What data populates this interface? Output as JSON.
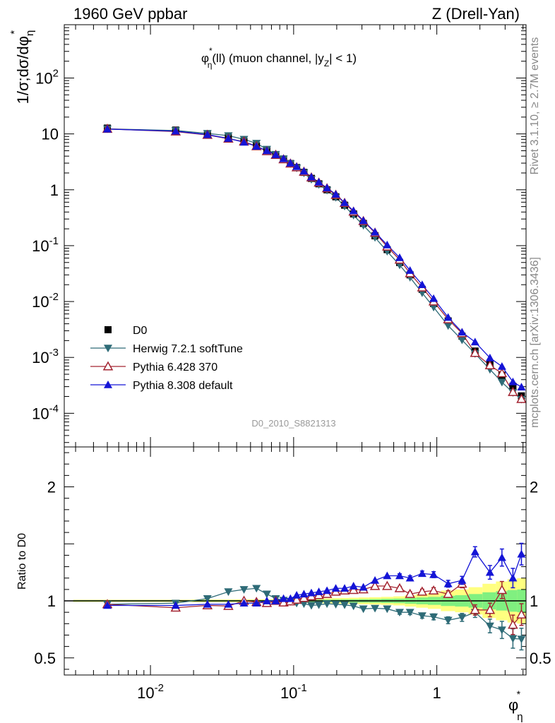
{
  "header": {
    "left": "1960 GeV ppbar",
    "right": "Z (Drell-Yan)"
  },
  "side_labels": {
    "rivet": "Rivet 3.1.10, ≥ 2.7M events",
    "mcplots": "mcplots.cern.ch [arXiv:1306.3436]"
  },
  "plot_title": {
    "phi": "φ",
    "star": "*",
    "eta": "η",
    "main": "(ll) (muon channel, |y",
    "z": "Z",
    "tail": "| < 1)"
  },
  "y_axis_top": {
    "prefix": "1/σ;dσ/dφ",
    "sub": "η",
    "sup": "*"
  },
  "y_axis_bottom": "Ratio to D0",
  "x_axis": {
    "base": "φ",
    "sub": "η",
    "sup": "*"
  },
  "analysis_id": "D0_2010_S8821313",
  "chart_data": [
    {
      "type": "scatter",
      "panel": "main",
      "xscale": "log",
      "yscale": "log",
      "xlim": [
        0.0025,
        4.2
      ],
      "ylim": [
        2.5e-05,
        900
      ],
      "xlabel": "φ*η",
      "ylabel": "1/σ;dσ/dφ*η",
      "legend_position": "lower-left",
      "x_ticks": [
        "10^-2",
        "10^-1",
        "1"
      ],
      "y_ticks": [
        "10^-4",
        "10^-3",
        "10^-2",
        "10^-1",
        "1",
        "10",
        "10^2"
      ],
      "x": [
        0.005,
        0.015,
        0.025,
        0.035,
        0.045,
        0.055,
        0.065,
        0.075,
        0.085,
        0.095,
        0.105,
        0.118,
        0.133,
        0.15,
        0.171,
        0.197,
        0.227,
        0.262,
        0.307,
        0.37,
        0.45,
        0.55,
        0.65,
        0.79,
        0.95,
        1.2,
        1.5,
        1.85,
        2.35,
        2.85,
        3.4,
        3.9
      ],
      "series": [
        {
          "name": "D0",
          "color": "#000000",
          "marker": "square",
          "values": [
            12.7,
            11.7,
            10.0,
            8.6,
            7.3,
            6.1,
            5.0,
            4.2,
            3.55,
            2.95,
            2.5,
            2.05,
            1.6,
            1.28,
            1.0,
            0.75,
            0.53,
            0.37,
            0.25,
            0.15,
            0.085,
            0.05,
            0.03,
            0.0165,
            0.0092,
            0.0045,
            0.0024,
            0.0013,
            0.00078,
            0.00048,
            0.000305,
            0.000205
          ]
        },
        {
          "name": "Herwig 7.2.1 softTune",
          "color": "#2e6b77",
          "marker": "triangle-down",
          "values": [
            12.3,
            11.5,
            10.2,
            9.3,
            8.0,
            6.8,
            5.3,
            4.3,
            3.57,
            2.94,
            2.45,
            2.0,
            1.54,
            1.24,
            0.98,
            0.73,
            0.51,
            0.35,
            0.23,
            0.14,
            0.079,
            0.045,
            0.027,
            0.0143,
            0.0079,
            0.0037,
            0.00205,
            0.00117,
            0.00061,
            0.00036,
            0.000235,
            0.000178
          ]
        },
        {
          "name": "Pythia 6.428 370",
          "color": "#a32431",
          "marker": "triangle-up-open",
          "values": [
            12.3,
            11.0,
            9.6,
            8.2,
            7.3,
            6.0,
            4.9,
            4.2,
            3.5,
            2.94,
            2.52,
            2.1,
            1.66,
            1.34,
            1.06,
            0.81,
            0.58,
            0.405,
            0.275,
            0.17,
            0.096,
            0.056,
            0.032,
            0.0178,
            0.01,
            0.0048,
            0.0027,
            0.0012,
            0.00072,
            0.00052,
            0.00024,
            0.00018
          ]
        },
        {
          "name": "Pythia 8.308 default",
          "color": "#1414d6",
          "marker": "triangle-up",
          "values": [
            12.2,
            11.2,
            9.7,
            8.3,
            7.1,
            6.0,
            5.0,
            4.25,
            3.6,
            3.0,
            2.6,
            2.15,
            1.69,
            1.37,
            1.08,
            0.83,
            0.59,
            0.42,
            0.28,
            0.175,
            0.103,
            0.061,
            0.036,
            0.02,
            0.0113,
            0.0052,
            0.00283,
            0.00189,
            0.00098,
            0.00069,
            0.000365,
            0.000295
          ]
        }
      ]
    },
    {
      "type": "scatter",
      "panel": "ratio",
      "xscale": "log",
      "xlim": [
        0.0025,
        4.2
      ],
      "ylim": [
        0.35,
        2.35
      ],
      "ylabel": "Ratio to D0",
      "y_ticks": [
        "0.5",
        "1",
        "2"
      ],
      "x": [
        0.005,
        0.015,
        0.025,
        0.035,
        0.045,
        0.055,
        0.065,
        0.075,
        0.085,
        0.095,
        0.105,
        0.118,
        0.133,
        0.15,
        0.171,
        0.197,
        0.227,
        0.262,
        0.307,
        0.37,
        0.45,
        0.55,
        0.65,
        0.79,
        0.95,
        1.2,
        1.5,
        1.85,
        2.35,
        2.85,
        3.4,
        3.9
      ],
      "band_inner": [
        0.005,
        0.005,
        0.006,
        0.006,
        0.007,
        0.007,
        0.007,
        0.008,
        0.008,
        0.008,
        0.009,
        0.009,
        0.01,
        0.01,
        0.011,
        0.012,
        0.013,
        0.014,
        0.015,
        0.016,
        0.018,
        0.02,
        0.025,
        0.03,
        0.035,
        0.045,
        0.05,
        0.06,
        0.075,
        0.085,
        0.095,
        0.1
      ],
      "band_outer": [
        0.01,
        0.01,
        0.012,
        0.012,
        0.013,
        0.013,
        0.014,
        0.015,
        0.015,
        0.016,
        0.017,
        0.018,
        0.019,
        0.02,
        0.022,
        0.024,
        0.026,
        0.028,
        0.03,
        0.032,
        0.035,
        0.04,
        0.05,
        0.06,
        0.07,
        0.09,
        0.1,
        0.12,
        0.15,
        0.17,
        0.19,
        0.2
      ],
      "series": [
        {
          "name": "Herwig 7.2.1 softTune",
          "color": "#2e6b77",
          "marker": "triangle-down",
          "values": [
            0.97,
            0.98,
            1.02,
            1.08,
            1.1,
            1.11,
            1.06,
            1.02,
            1.005,
            0.995,
            0.98,
            0.975,
            0.96,
            0.965,
            0.975,
            0.97,
            0.965,
            0.955,
            0.93,
            0.935,
            0.93,
            0.9,
            0.9,
            0.87,
            0.86,
            0.83,
            0.855,
            0.9,
            0.78,
            0.745,
            0.67,
            0.665
          ],
          "errors": [
            0.01,
            0.01,
            0.01,
            0.01,
            0.01,
            0.01,
            0.01,
            0.01,
            0.01,
            0.01,
            0.01,
            0.01,
            0.01,
            0.01,
            0.01,
            0.01,
            0.012,
            0.012,
            0.012,
            0.013,
            0.015,
            0.017,
            0.02,
            0.022,
            0.026,
            0.03,
            0.035,
            0.045,
            0.06,
            0.075,
            0.085,
            0.095
          ]
        },
        {
          "name": "Pythia 6.428 370",
          "color": "#a32431",
          "marker": "triangle-up-open",
          "values": [
            0.97,
            0.94,
            0.96,
            0.955,
            1.0,
            0.99,
            0.98,
            1.0,
            0.985,
            0.995,
            1.01,
            1.025,
            1.04,
            1.05,
            1.06,
            1.08,
            1.09,
            1.095,
            1.1,
            1.13,
            1.13,
            1.11,
            1.06,
            1.08,
            1.09,
            1.06,
            1.15,
            0.92,
            0.92,
            1.095,
            0.79,
            0.88
          ],
          "errors": [
            0.01,
            0.01,
            0.01,
            0.01,
            0.01,
            0.01,
            0.01,
            0.01,
            0.01,
            0.01,
            0.01,
            0.01,
            0.01,
            0.01,
            0.01,
            0.01,
            0.012,
            0.012,
            0.012,
            0.013,
            0.015,
            0.017,
            0.02,
            0.022,
            0.026,
            0.03,
            0.035,
            0.045,
            0.06,
            0.075,
            0.085,
            0.095
          ]
        },
        {
          "name": "Pythia 8.308 default",
          "color": "#1414d6",
          "marker": "triangle-up",
          "values": [
            0.96,
            0.96,
            0.97,
            0.97,
            0.98,
            0.98,
            1.0,
            1.0,
            1.02,
            1.02,
            1.05,
            1.06,
            1.07,
            1.08,
            1.09,
            1.11,
            1.11,
            1.13,
            1.12,
            1.18,
            1.22,
            1.22,
            1.2,
            1.24,
            1.23,
            1.15,
            1.18,
            1.43,
            1.25,
            1.38,
            1.2,
            1.41
          ],
          "errors": [
            0.01,
            0.01,
            0.01,
            0.01,
            0.01,
            0.01,
            0.01,
            0.01,
            0.01,
            0.01,
            0.01,
            0.01,
            0.01,
            0.01,
            0.01,
            0.01,
            0.012,
            0.012,
            0.012,
            0.013,
            0.015,
            0.017,
            0.02,
            0.022,
            0.026,
            0.03,
            0.035,
            0.045,
            0.06,
            0.075,
            0.085,
            0.095
          ]
        }
      ]
    }
  ]
}
